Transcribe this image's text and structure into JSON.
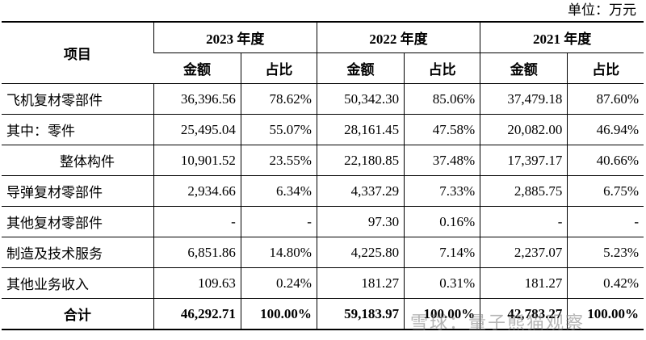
{
  "unit_label": "单位：万元",
  "header": {
    "item": "项目",
    "years": [
      "2023 年度",
      "2022 年度",
      "2021 年度"
    ],
    "amount": "金额",
    "ratio": "占比"
  },
  "rows": [
    {
      "label": "飞机复材零部件",
      "indent": 0,
      "values": [
        "36,396.56",
        "78.62%",
        "50,342.30",
        "85.06%",
        "37,479.18",
        "87.60%"
      ]
    },
    {
      "label": "其中：零件",
      "indent": 0,
      "values": [
        "25,495.04",
        "55.07%",
        "28,161.45",
        "47.58%",
        "20,082.00",
        "46.94%"
      ]
    },
    {
      "label": "整体构件",
      "indent": 2,
      "values": [
        "10,901.52",
        "23.55%",
        "22,180.85",
        "37.48%",
        "17,397.17",
        "40.66%"
      ]
    },
    {
      "label": "导弹复材零部件",
      "indent": 0,
      "values": [
        "2,934.66",
        "6.34%",
        "4,337.29",
        "7.33%",
        "2,885.75",
        "6.75%"
      ]
    },
    {
      "label": "其他复材零部件",
      "indent": 0,
      "values": [
        "-",
        "-",
        "97.30",
        "0.16%",
        "-",
        "-"
      ]
    },
    {
      "label": "制造及技术服务",
      "indent": 0,
      "values": [
        "6,851.86",
        "14.80%",
        "4,225.80",
        "7.14%",
        "2,237.07",
        "5.23%"
      ]
    },
    {
      "label": "其他业务收入",
      "indent": 0,
      "values": [
        "109.63",
        "0.24%",
        "181.27",
        "0.31%",
        "181.27",
        "0.42%"
      ]
    }
  ],
  "total": {
    "label": "合计",
    "values": [
      "46,292.71",
      "100.00%",
      "59,183.97",
      "100.00%",
      "42,783.27",
      "100.00%"
    ]
  },
  "watermark": "雪球：量子熊猫观察"
}
